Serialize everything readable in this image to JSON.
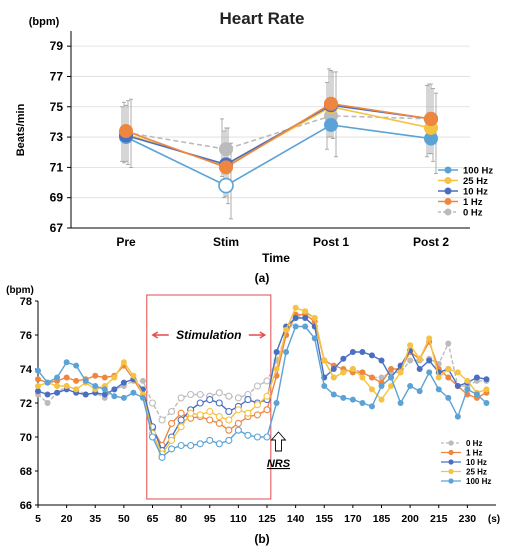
{
  "figure": {
    "label_a": "(a)",
    "label_b": "(b)"
  },
  "colors": {
    "hz100": "#5BA3D6",
    "hz25": "#F5C242",
    "hz10": "#4A6FC2",
    "hz1": "#EE8640",
    "hz0": "#BBBBBB",
    "nrs_box": "#E24C4C",
    "axis": "#000000"
  },
  "chart_data": [
    {
      "type": "line",
      "title": "Heart Rate",
      "xlabel": "Time",
      "ylabel": "Beats/min",
      "yunit": "(bpm)",
      "categories": [
        "Pre",
        "Stim",
        "Post 1",
        "Post 2"
      ],
      "ylim": [
        67,
        80
      ],
      "yticks": [
        67,
        69,
        71,
        73,
        75,
        77,
        79
      ],
      "legend_position": "right",
      "series": [
        {
          "name": "100 Hz",
          "key": "hz100",
          "values": [
            73.0,
            69.8,
            73.8,
            72.9
          ],
          "dashed": false,
          "hollow_at": [
            1
          ]
        },
        {
          "name": "25 Hz",
          "key": "hz25",
          "values": [
            73.2,
            71.1,
            75.0,
            73.6
          ],
          "dashed": false,
          "hollow_at": []
        },
        {
          "name": "10 Hz",
          "key": "hz10",
          "values": [
            73.1,
            71.2,
            75.1,
            74.2
          ],
          "dashed": false,
          "hollow_at": []
        },
        {
          "name": "1 Hz",
          "key": "hz1",
          "values": [
            73.4,
            71.0,
            75.2,
            74.2
          ],
          "dashed": false,
          "hollow_at": []
        },
        {
          "name": "0 Hz",
          "key": "hz0",
          "values": [
            73.3,
            72.2,
            74.4,
            74.2
          ],
          "dashed": true,
          "hollow_at": []
        }
      ],
      "error_bars": [
        [
          [
            71.0,
            75.5
          ],
          [
            67.6,
            72.6
          ],
          [
            71.7,
            77.3
          ],
          [
            70.6,
            75.9
          ]
        ],
        [
          [
            71.2,
            75.4
          ],
          [
            68.6,
            73.6
          ],
          [
            72.9,
            77.3
          ],
          [
            71.4,
            76.2
          ]
        ],
        [
          [
            71.4,
            75.1
          ],
          [
            69.1,
            73.6
          ],
          [
            73.0,
            77.4
          ],
          [
            71.9,
            76.5
          ]
        ],
        [
          [
            71.3,
            75.3
          ],
          [
            69.0,
            73.4
          ],
          [
            73.0,
            77.5
          ],
          [
            71.9,
            76.5
          ]
        ],
        [
          [
            71.4,
            75.0
          ],
          [
            70.4,
            74.2
          ],
          [
            72.2,
            76.6
          ],
          [
            71.7,
            76.4
          ]
        ]
      ]
    },
    {
      "type": "line",
      "title": "",
      "xlabel": "",
      "xunit": "(s)",
      "ylabel": "",
      "yunit": "(bpm)",
      "xticks": [
        5,
        20,
        35,
        50,
        65,
        80,
        95,
        110,
        125,
        140,
        155,
        170,
        185,
        200,
        215,
        230
      ],
      "xlim": [
        5,
        245
      ],
      "ylim": [
        66,
        78
      ],
      "yticks": [
        66,
        68,
        70,
        72,
        74,
        76,
        78
      ],
      "x": [
        5,
        10,
        15,
        20,
        25,
        30,
        35,
        40,
        45,
        50,
        55,
        60,
        65,
        70,
        75,
        80,
        85,
        90,
        95,
        100,
        105,
        110,
        115,
        120,
        125,
        130,
        135,
        140,
        145,
        150,
        155,
        160,
        165,
        170,
        175,
        180,
        185,
        190,
        195,
        200,
        205,
        210,
        215,
        220,
        225,
        230,
        235,
        240
      ],
      "stimulation_window": [
        62,
        127
      ],
      "stimulation_label": "Stimulation",
      "nrs_label": "NRS",
      "nrs_x": 131,
      "hollow_range": [
        65,
        125
      ],
      "legend_position": "right",
      "series": [
        {
          "name": "0 Hz",
          "key": "hz0",
          "dashed": true,
          "values": [
            72.5,
            72.0,
            72.6,
            73.0,
            72.8,
            72.5,
            72.6,
            72.3,
            72.8,
            73.0,
            73.3,
            73.3,
            72.0,
            71.0,
            71.5,
            72.3,
            72.5,
            72.5,
            72.4,
            72.6,
            72.4,
            72.3,
            72.5,
            73.0,
            73.3,
            74.5,
            76.0,
            77.0,
            77.3,
            77.0,
            74.5,
            73.5,
            73.8,
            74.0,
            73.8,
            73.5,
            73.5,
            73.8,
            73.8,
            74.5,
            74.5,
            74.6,
            74.3,
            75.5,
            73.0,
            73.0,
            73.3,
            73.3
          ]
        },
        {
          "name": "1 Hz",
          "key": "hz1",
          "dashed": false,
          "values": [
            73.4,
            73.2,
            73.3,
            73.5,
            73.3,
            73.4,
            73.6,
            73.5,
            73.6,
            74.2,
            73.4,
            72.5,
            70.5,
            69.5,
            70.8,
            71.4,
            71.1,
            71.2,
            71.0,
            70.8,
            70.4,
            70.8,
            71.2,
            71.3,
            71.6,
            73.6,
            76.0,
            77.2,
            77.2,
            76.8,
            74.5,
            74.2,
            74.0,
            73.8,
            73.8,
            73.5,
            73.2,
            74.0,
            74.0,
            75.0,
            74.6,
            75.6,
            74.0,
            73.5,
            73.0,
            72.5,
            72.3,
            72.6
          ]
        },
        {
          "name": "10 Hz",
          "key": "hz10",
          "dashed": false,
          "values": [
            72.7,
            72.5,
            72.6,
            72.8,
            72.6,
            72.5,
            72.6,
            72.5,
            72.8,
            73.2,
            73.4,
            72.8,
            70.6,
            69.2,
            70.0,
            71.0,
            71.6,
            72.0,
            72.2,
            72.0,
            71.5,
            71.8,
            72.2,
            72.0,
            72.2,
            75.0,
            76.5,
            77.0,
            77.0,
            76.5,
            73.5,
            74.0,
            74.6,
            75.0,
            75.0,
            74.8,
            74.5,
            73.5,
            74.2,
            75.1,
            74.0,
            74.5,
            73.8,
            74.0,
            73.0,
            73.2,
            73.5,
            73.4
          ]
        },
        {
          "name": "25 Hz",
          "key": "hz25",
          "dashed": false,
          "values": [
            73.0,
            73.2,
            73.0,
            73.0,
            72.8,
            73.2,
            72.8,
            73.0,
            73.5,
            74.4,
            73.6,
            72.5,
            70.2,
            69.0,
            69.8,
            70.6,
            71.4,
            71.3,
            71.5,
            71.2,
            71.0,
            71.6,
            71.4,
            71.9,
            72.4,
            74.0,
            76.3,
            77.6,
            77.4,
            77.0,
            74.5,
            73.5,
            73.8,
            74.0,
            73.5,
            72.8,
            72.2,
            73.0,
            73.8,
            75.4,
            74.6,
            75.8,
            73.5,
            74.0,
            73.8,
            73.3,
            72.6,
            72.8
          ]
        },
        {
          "name": "100 Hz",
          "key": "hz100",
          "dashed": false,
          "values": [
            73.9,
            73.2,
            73.5,
            74.4,
            74.2,
            73.3,
            73.0,
            72.8,
            72.4,
            72.3,
            72.6,
            72.3,
            70.0,
            68.8,
            69.3,
            69.5,
            69.5,
            69.6,
            69.8,
            69.6,
            69.8,
            70.4,
            70.1,
            70.0,
            70.0,
            72.0,
            75.0,
            76.5,
            76.5,
            75.8,
            73.0,
            72.5,
            72.3,
            72.2,
            72.0,
            71.8,
            73.0,
            73.5,
            72.0,
            73.0,
            72.7,
            73.8,
            72.8,
            72.3,
            71.2,
            72.8,
            72.5,
            72.0
          ]
        }
      ]
    }
  ]
}
